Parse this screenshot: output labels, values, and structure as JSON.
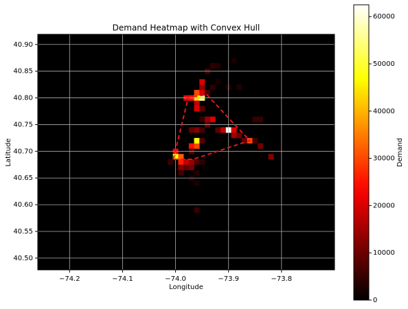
{
  "chart_data": {
    "type": "heatmap",
    "title": "Demand Heatmap with Convex Hull",
    "x_label": "Longitude",
    "y_label": "Latitude",
    "colorbar_label": "Demand",
    "xlim": [
      -74.26,
      -73.7
    ],
    "ylim": [
      40.478,
      40.919
    ],
    "xticks": [
      {
        "value": -74.2,
        "label": "−74.2"
      },
      {
        "value": -74.1,
        "label": "−74.1"
      },
      {
        "value": -74.0,
        "label": "−74.0"
      },
      {
        "value": -73.9,
        "label": "−73.9"
      },
      {
        "value": -73.8,
        "label": "−73.8"
      }
    ],
    "yticks": [
      {
        "value": 40.5,
        "label": "40.50"
      },
      {
        "value": 40.55,
        "label": "40.55"
      },
      {
        "value": 40.6,
        "label": "40.60"
      },
      {
        "value": 40.65,
        "label": "40.65"
      },
      {
        "value": 40.7,
        "label": "40.70"
      },
      {
        "value": 40.75,
        "label": "40.75"
      },
      {
        "value": 40.8,
        "label": "40.80"
      },
      {
        "value": 40.85,
        "label": "40.85"
      },
      {
        "value": 40.9,
        "label": "40.90"
      }
    ],
    "clim": [
      0,
      62500
    ],
    "colorbar_ticks": [
      0,
      10000,
      20000,
      30000,
      40000,
      50000,
      60000
    ],
    "colormap": "hot",
    "grid": true,
    "cells": {
      "x": [
        -74.0,
        -74.0,
        -73.99,
        -73.99,
        -73.98,
        -73.97,
        -73.99,
        -73.98,
        -73.97,
        -74.01,
        -73.99,
        -73.96,
        -73.95,
        -73.96,
        -73.97,
        -73.96,
        -73.96,
        -73.97,
        -73.96,
        -73.96,
        -73.95,
        -73.96,
        -73.95,
        -73.94,
        -73.93,
        -73.94,
        -73.92,
        -73.91,
        -73.9,
        -73.89,
        -73.89,
        -73.88,
        -73.87,
        -73.86,
        -73.85,
        -73.85,
        -73.84,
        -73.84,
        -73.82,
        -73.98,
        -73.97,
        -73.96,
        -73.95,
        -73.96,
        -73.95,
        -73.95,
        -73.95,
        -73.96,
        -73.96,
        -73.95,
        -73.94,
        -73.93,
        -73.92,
        -73.94,
        -73.93,
        -73.92,
        -73.9,
        -73.88,
        -73.89,
        -73.97,
        -73.97,
        -73.95
      ],
      "y": [
        40.7,
        40.69,
        40.69,
        40.68,
        40.68,
        40.68,
        40.67,
        40.67,
        40.67,
        40.68,
        40.66,
        40.68,
        40.68,
        40.66,
        40.65,
        40.64,
        40.59,
        40.71,
        40.71,
        40.72,
        40.72,
        40.74,
        40.74,
        40.75,
        40.76,
        40.76,
        40.74,
        40.74,
        40.74,
        40.74,
        40.73,
        40.73,
        40.72,
        40.72,
        40.72,
        40.76,
        40.76,
        40.71,
        40.69,
        40.8,
        40.8,
        40.8,
        40.8,
        40.81,
        40.81,
        40.82,
        40.83,
        40.79,
        40.78,
        40.78,
        40.85,
        40.86,
        40.86,
        40.81,
        40.82,
        40.83,
        40.82,
        40.82,
        40.87,
        40.74,
        40.7,
        40.76
      ],
      "values": [
        22000,
        48000,
        32000,
        26000,
        18000,
        14000,
        12000,
        9000,
        11000,
        5000,
        6000,
        7000,
        4000,
        3000,
        3000,
        2500,
        5000,
        25000,
        30000,
        47000,
        8000,
        12000,
        6000,
        9000,
        20000,
        14000,
        8000,
        18000,
        62000,
        20000,
        15000,
        10000,
        9000,
        30000,
        6000,
        5000,
        5000,
        10000,
        12000,
        22000,
        25000,
        45000,
        55000,
        30000,
        20000,
        14000,
        20000,
        18000,
        20000,
        8000,
        6000,
        4000,
        3000,
        7000,
        4000,
        2000,
        3000,
        3000,
        2000,
        9000,
        8000,
        5000
      ]
    },
    "hull": {
      "color": "#e8141c",
      "x": [
        -74.004,
        -73.976,
        -73.941,
        -73.86,
        -73.967
      ],
      "y": [
        40.685,
        40.801,
        40.806,
        40.72,
        40.685
      ]
    }
  }
}
